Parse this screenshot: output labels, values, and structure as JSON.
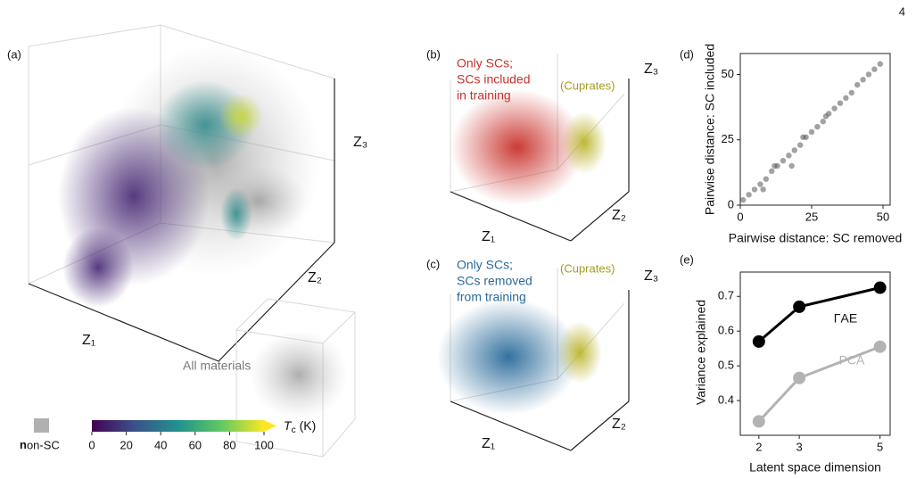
{
  "page_number": "4",
  "chart_data": [
    {
      "type": "scatter3d",
      "panel_label": "(a)",
      "axis_labels": [
        "Z₁",
        "Z₂",
        "Z₃"
      ],
      "inset_label": "All materials",
      "legend_label": "non-SC",
      "colorbar": {
        "symbol": "T",
        "subscript": "c",
        "unit": "(K)",
        "lim": [
          0,
          100
        ],
        "ticks": [
          0,
          20,
          40,
          60,
          80,
          100
        ]
      }
    },
    {
      "type": "scatter3d",
      "panel_label": "(b)",
      "text_lines": [
        "Only SCs;",
        "SCs included",
        "in training"
      ],
      "color": "#c8312b",
      "annotation": "(Cuprates)",
      "annotation_color": "#a39d1f",
      "axis_labels": [
        "Z₁",
        "Z₂",
        "Z₃"
      ]
    },
    {
      "type": "scatter3d",
      "panel_label": "(c)",
      "text_lines": [
        "Only SCs;",
        "SCs removed",
        "from training"
      ],
      "color": "#2a6a9a",
      "annotation": "(Cuprates)",
      "annotation_color": "#a39d1f",
      "axis_labels": [
        "Z₁",
        "Z₂",
        "Z₃"
      ]
    },
    {
      "type": "scatter",
      "panel_label": "(d)",
      "xlabel": "Pairwise distance: SC removed",
      "ylabel": "Pairwise distance: SC included",
      "xlim": [
        0,
        52.5
      ],
      "ylim": [
        0,
        58
      ],
      "xticks": [
        0,
        25,
        50
      ],
      "yticks": [
        0,
        25,
        50
      ],
      "color": "#555555",
      "x": [
        1,
        3,
        5,
        7,
        9,
        11,
        13,
        15,
        17,
        19,
        21,
        23,
        25,
        27,
        29,
        31,
        33,
        35,
        37,
        39,
        41,
        43,
        45,
        47,
        49,
        8,
        12,
        18,
        22,
        30
      ],
      "y": [
        2,
        4,
        6,
        8,
        10,
        13,
        15,
        17,
        19,
        21,
        23,
        26,
        28,
        30,
        32,
        35,
        37,
        39,
        41,
        43,
        46,
        48,
        50,
        52,
        54,
        6,
        15,
        15,
        26,
        34
      ]
    },
    {
      "type": "line",
      "panel_label": "(e)",
      "xlabel": "Latent space dimension",
      "ylabel": "Variance explained",
      "x": [
        2,
        3,
        5
      ],
      "xlim": [
        1.54,
        5.25
      ],
      "ylim": [
        0.3,
        0.77
      ],
      "xticks": [
        2,
        3,
        5
      ],
      "yticks": [
        0.4,
        0.5,
        0.6,
        0.7
      ],
      "series": [
        {
          "name": "ΓAE",
          "color": "#000000",
          "values": [
            0.57,
            0.67,
            0.725
          ]
        },
        {
          "name": "PCA",
          "color": "#b3b3b3",
          "values": [
            0.34,
            0.465,
            0.555
          ]
        }
      ]
    }
  ]
}
